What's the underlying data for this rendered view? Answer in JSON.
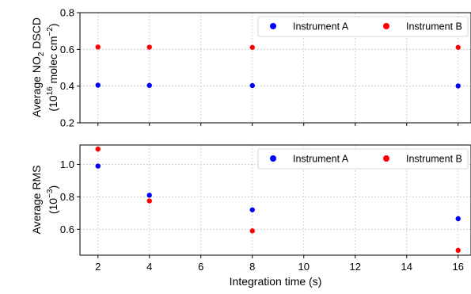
{
  "chart_data": [
    {
      "type": "scatter",
      "title": "",
      "xlabel": "",
      "ylabel_lines": [
        {
          "base": "Average NO",
          "sub": "2",
          "rest": " DSCD"
        },
        {
          "open": "(10",
          "sup": "16",
          "mid": " molec cm",
          "sup2": "−2",
          "close": ")"
        }
      ],
      "x": [
        2,
        4,
        8,
        16
      ],
      "xlim": [
        1.3,
        16.5
      ],
      "ylim": [
        0.2,
        0.8
      ],
      "yticks": [
        0.2,
        0.4,
        0.6,
        0.8
      ],
      "series": [
        {
          "name": "Instrument A",
          "color": "#0000ff",
          "values": [
            0.405,
            0.404,
            0.403,
            0.401
          ]
        },
        {
          "name": "Instrument B",
          "color": "#ff0000",
          "values": [
            0.613,
            0.612,
            0.611,
            0.611
          ]
        }
      ],
      "grid": true,
      "legend_position": "top-right"
    },
    {
      "type": "scatter",
      "title": "",
      "xlabel": "Integration time (s)",
      "xticks": [
        2,
        4,
        6,
        8,
        10,
        12,
        14,
        16
      ],
      "ylabel_lines": [
        {
          "base": "Average RMS"
        },
        {
          "open": "(10",
          "sup": "−3",
          "close": ")"
        }
      ],
      "x": [
        2,
        4,
        8,
        16
      ],
      "xlim": [
        1.3,
        16.5
      ],
      "ylim": [
        0.44,
        1.12
      ],
      "yticks": [
        0.6,
        0.8,
        1.0
      ],
      "series": [
        {
          "name": "Instrument A",
          "color": "#0000ff",
          "values": [
            0.99,
            0.81,
            0.72,
            0.665
          ]
        },
        {
          "name": "Instrument B",
          "color": "#ff0000",
          "values": [
            1.095,
            0.775,
            0.59,
            0.47
          ]
        }
      ],
      "grid": true,
      "legend_position": "top-right"
    }
  ]
}
